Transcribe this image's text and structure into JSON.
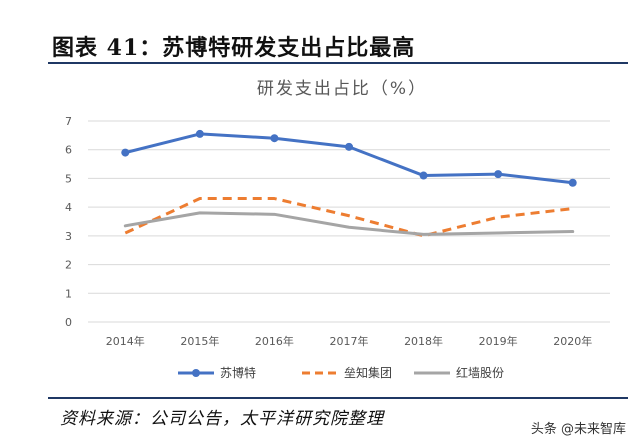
{
  "figure": {
    "title": "图表 41：苏博特研发支出占比最高",
    "source": "资料来源：公司公告，太平洋研究院整理",
    "watermark": "头条 @未来智库"
  },
  "chart_data": {
    "type": "line",
    "title": "研发支出占比（%）",
    "x": [
      "2014年",
      "2015年",
      "2016年",
      "2017年",
      "2018年",
      "2019年",
      "2020年"
    ],
    "ylim": [
      0,
      7
    ],
    "yticks": [
      0,
      1,
      2,
      3,
      4,
      5,
      6,
      7
    ],
    "grid": true,
    "legend": "bottom",
    "series": [
      {
        "name": "苏博特",
        "values": [
          5.9,
          6.55,
          6.4,
          6.1,
          5.1,
          5.15,
          4.85
        ],
        "color": "#4472c4",
        "style": "solid",
        "marker": true
      },
      {
        "name": "垒知集团",
        "values": [
          3.1,
          4.3,
          4.3,
          3.7,
          3.0,
          3.65,
          3.95
        ],
        "color": "#ed7d31",
        "style": "dashed",
        "marker": false
      },
      {
        "name": "红墙股份",
        "values": [
          3.35,
          3.8,
          3.75,
          3.3,
          3.05,
          3.1,
          3.15
        ],
        "color": "#a5a5a5",
        "style": "solid",
        "marker": false
      }
    ]
  }
}
